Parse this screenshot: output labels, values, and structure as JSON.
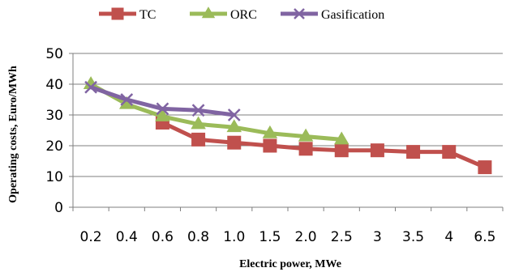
{
  "chart_data": {
    "type": "line",
    "categories": [
      "0.2",
      "0.4",
      "0.6",
      "0.8",
      "1.0",
      "1.5",
      "2.0",
      "2.5",
      "3",
      "3.5",
      "4",
      "6.5"
    ],
    "xlabel": "Electric power, MWe",
    "ylabel": "Operating costs, Euro/MWh",
    "ylim": [
      0,
      50
    ],
    "yticks": [
      0,
      10,
      20,
      30,
      40,
      50
    ],
    "grid": true,
    "legend_position": "top",
    "series": [
      {
        "name": "TC",
        "color": "#c0504d",
        "marker": "square",
        "values": [
          null,
          null,
          27.5,
          22,
          21,
          20,
          19,
          18.5,
          18.5,
          18,
          18,
          13
        ]
      },
      {
        "name": "ORC",
        "color": "#9bbb59",
        "marker": "triangle",
        "values": [
          40,
          33.5,
          29.5,
          27,
          26,
          24,
          23,
          22,
          null,
          null,
          null,
          null
        ]
      },
      {
        "name": "Gasification",
        "color": "#8064a2",
        "marker": "x",
        "values": [
          39,
          35,
          32,
          31.5,
          30,
          null,
          null,
          null,
          null,
          null,
          null,
          null
        ]
      }
    ]
  }
}
